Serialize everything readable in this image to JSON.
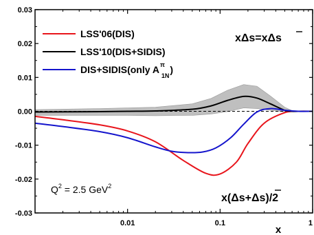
{
  "chart_data": {
    "type": "line",
    "xscale": "log",
    "xlim": [
      0.001,
      1
    ],
    "ylim": [
      -0.03,
      0.03
    ],
    "grid": false,
    "xlabel": "x",
    "ylabel": "",
    "x_tick_labels": [
      "0.01",
      "0.1",
      "1"
    ],
    "x_tick_values": [
      0.01,
      0.1,
      1
    ],
    "y_tick_labels": [
      "0.03",
      "0.02",
      "0.01",
      "0.00",
      "-0.01",
      "-0.02",
      "-0.03"
    ],
    "y_tick_values": [
      0.03,
      0.02,
      0.01,
      0.0,
      -0.01,
      -0.02,
      -0.03
    ],
    "legend_position": "top-left",
    "series": [
      {
        "name": "LSS'06(DIS)",
        "color": "#e8141b",
        "x": [
          0.001,
          0.002,
          0.005,
          0.01,
          0.02,
          0.04,
          0.07,
          0.1,
          0.15,
          0.2,
          0.3,
          0.5,
          0.7,
          1.0
        ],
        "y": [
          -0.0015,
          -0.0025,
          -0.004,
          -0.0058,
          -0.009,
          -0.0145,
          -0.0183,
          -0.0185,
          -0.015,
          -0.0095,
          -0.0035,
          -0.0004,
          0.0,
          0.0
        ]
      },
      {
        "name": "LSS'10(DIS+SIDIS)",
        "color": "#000000",
        "x": [
          0.001,
          0.005,
          0.01,
          0.02,
          0.05,
          0.08,
          0.12,
          0.18,
          0.25,
          0.35,
          0.5,
          0.6,
          0.7,
          1.0
        ],
        "y": [
          -0.0002,
          -0.0001,
          0.0,
          0.0001,
          0.0006,
          0.0016,
          0.0032,
          0.0044,
          0.0039,
          0.0022,
          0.0003,
          0.0,
          0.0,
          0.0
        ]
      },
      {
        "name": "DIS+SIDIS(only A",
        "color": "#1414cc",
        "x": [
          0.001,
          0.002,
          0.005,
          0.01,
          0.02,
          0.03,
          0.045,
          0.065,
          0.09,
          0.13,
          0.18,
          0.25,
          0.35,
          0.5,
          0.7,
          1.0
        ],
        "y": [
          -0.0035,
          -0.0045,
          -0.006,
          -0.0078,
          -0.0105,
          -0.0118,
          -0.0122,
          -0.012,
          -0.0108,
          -0.0078,
          -0.0038,
          -0.0002,
          0.0008,
          0.0003,
          0.0,
          0.0
        ]
      }
    ],
    "bands": [
      {
        "series": "LSS'10(DIS+SIDIS)",
        "color": "#bfbfbf",
        "x": [
          0.001,
          0.005,
          0.01,
          0.02,
          0.05,
          0.08,
          0.12,
          0.18,
          0.25,
          0.35,
          0.5,
          0.6,
          0.7,
          1.0
        ],
        "upper": [
          0.0005,
          0.0008,
          0.001,
          0.0012,
          0.0022,
          0.0038,
          0.0062,
          0.0079,
          0.0074,
          0.0045,
          0.0012,
          0.0002,
          0.0,
          0.0
        ],
        "lower": [
          -0.0012,
          -0.0012,
          -0.0012,
          -0.0013,
          -0.0012,
          -0.0008,
          -0.0001,
          0.001,
          0.0008,
          0.0003,
          -0.0002,
          0.0,
          0.0,
          0.0
        ]
      }
    ]
  },
  "legend": {
    "items": [
      {
        "label": "LSS'06(DIS)",
        "color": "#e8141b"
      },
      {
        "label": "LSS'10(DIS+SIDIS)",
        "color": "#000000"
      },
      {
        "label": "DIS+SIDIS(only A",
        "color": "#1414cc"
      }
    ],
    "blue_sup": "π",
    "blue_sub": "1N",
    "blue_close": ")"
  },
  "annotations": {
    "top_right_left": "xΔs",
    "top_right_eq": "=",
    "top_right_right": "xΔ",
    "top_right_sbar": "s",
    "q2_base": "Q",
    "q2_sup": "2",
    "q2_rest": " = 2.5 GeV",
    "q2_unit_sup": "2",
    "bottom_right_open": "x(Δs+Δ",
    "bottom_right_sbar": "s",
    "bottom_right_close": ")/2"
  }
}
